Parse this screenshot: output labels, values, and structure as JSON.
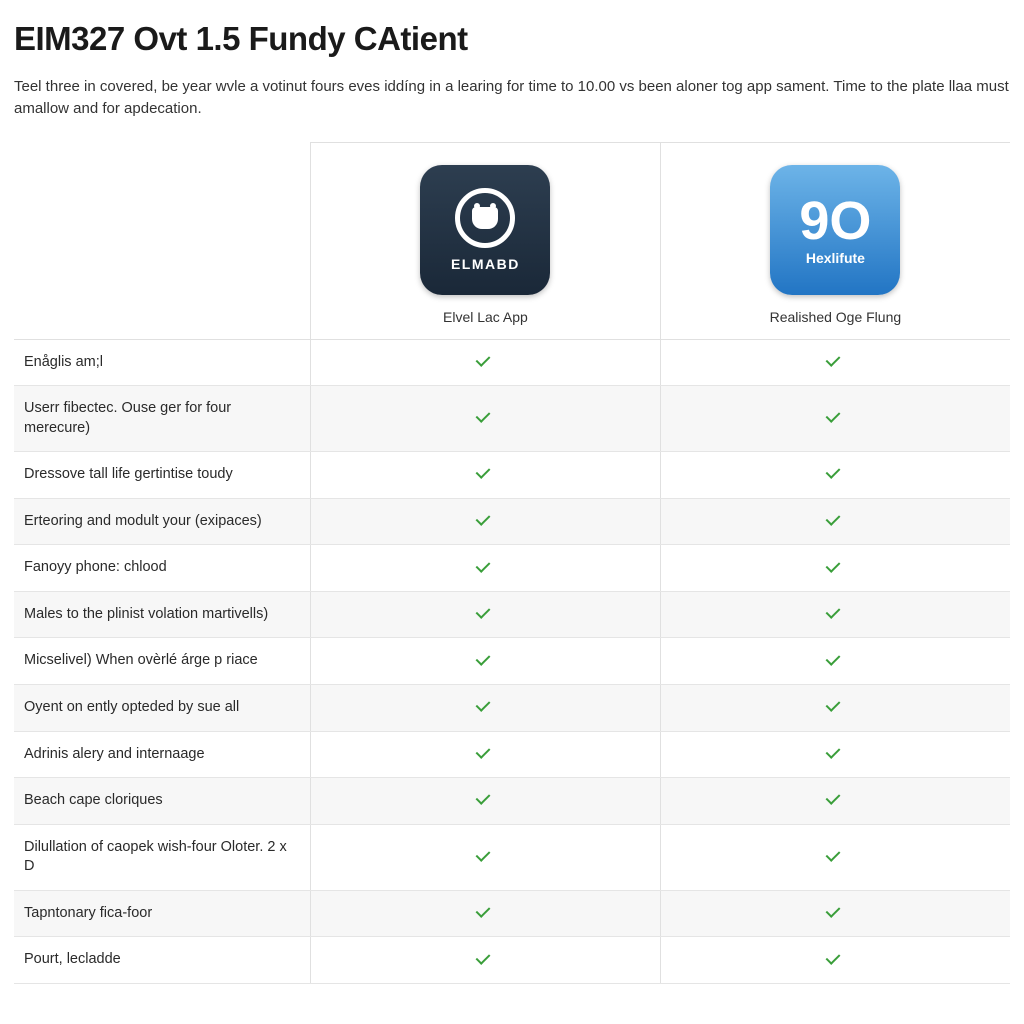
{
  "title": "EIM327 Ovt 1.5 Fundy CAtient",
  "description": "Teel three in covered, be year wvle a votinut fours eves iddíng in a learing for time to 10.00 vs been aloner tog app sament. Time to the plate llaa must amallow and for apdecation.",
  "products": [
    {
      "brand": "ELMABD",
      "name": "Elvel Lac App",
      "icon_bg_top": "#2d3e50",
      "icon_bg_bottom": "#1a2838"
    },
    {
      "brand": "Hexlifute",
      "name": "Realished Oge Flung",
      "icon_bg_top": "#6db4e8",
      "icon_bg_bottom": "#2275c4"
    }
  ],
  "features": [
    {
      "label": "Enåglis am;l",
      "col1": true,
      "col2": true
    },
    {
      "label": "Userr fibectec. Ouse ger for four merecure)",
      "col1": true,
      "col2": true
    },
    {
      "label": "Dressove tall life gertintise toudy",
      "col1": true,
      "col2": true
    },
    {
      "label": "Erteoring and modult your (exipaces)",
      "col1": true,
      "col2": true
    },
    {
      "label": "Fanoyy phone: chlood",
      "col1": true,
      "col2": true
    },
    {
      "label": "Males to the plinist volation martivells)",
      "col1": true,
      "col2": true
    },
    {
      "label": "Micselivel) When ovèrlé árge p riace",
      "col1": true,
      "col2": true
    },
    {
      "label": "Oyent on ently opteded by sue all",
      "col1": true,
      "col2": true
    },
    {
      "label": "Adrinis alery and internaage",
      "col1": true,
      "col2": true
    },
    {
      "label": "Beach cape cloriques",
      "col1": true,
      "col2": true
    },
    {
      "label": "Dilullation of caopek wish-four Oloter. 2 x D",
      "col1": true,
      "col2": true
    },
    {
      "label": "Tapntonary fica-foor",
      "col1": true,
      "col2": true
    },
    {
      "label": "Pourt, lecladde",
      "col1": true,
      "col2": true
    }
  ],
  "colors": {
    "check": "#3a9e3a",
    "border": "#e0e0e0",
    "alt_row": "#f7f7f7",
    "text": "#2a2a2a"
  }
}
